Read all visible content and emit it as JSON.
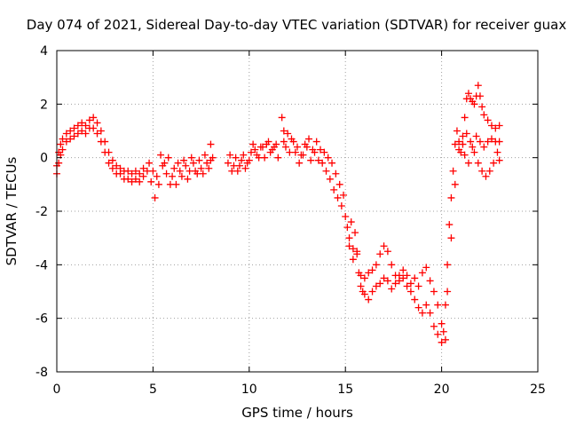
{
  "chart_data": {
    "type": "scatter",
    "title": "Day 074 of 2021, Sidereal Day-to-day VTEC variation (SDTVAR) for receiver guax",
    "xlabel": "GPS time / hours",
    "ylabel": "SDTVAR / TECUs",
    "xlim": [
      0,
      25
    ],
    "ylim": [
      -8,
      4
    ],
    "xticks": [
      0,
      5,
      10,
      15,
      20,
      25
    ],
    "yticks": [
      -8,
      -6,
      -4,
      -2,
      0,
      2,
      4
    ],
    "grid": true,
    "marker": "+",
    "series": [
      {
        "name": "SDTVAR",
        "color": "#ff0000",
        "points": [
          [
            0.0,
            -0.3
          ],
          [
            0.1,
            0.2
          ],
          [
            0.2,
            0.5
          ],
          [
            0.3,
            0.7
          ],
          [
            0.5,
            0.9
          ],
          [
            0.7,
            1.0
          ],
          [
            0.9,
            1.1
          ],
          [
            1.1,
            1.2
          ],
          [
            1.3,
            1.3
          ],
          [
            1.5,
            1.2
          ],
          [
            1.7,
            1.4
          ],
          [
            1.9,
            1.5
          ],
          [
            2.1,
            1.3
          ],
          [
            2.3,
            1.0
          ],
          [
            2.5,
            0.6
          ],
          [
            2.7,
            0.2
          ],
          [
            2.9,
            -0.1
          ],
          [
            3.1,
            -0.3
          ],
          [
            3.3,
            -0.4
          ],
          [
            3.5,
            -0.5
          ],
          [
            3.7,
            -0.5
          ],
          [
            3.9,
            -0.6
          ],
          [
            4.1,
            -0.5
          ],
          [
            4.3,
            -0.6
          ],
          [
            4.5,
            -0.4
          ],
          [
            0.0,
            -0.6
          ],
          [
            0.1,
            -0.2
          ],
          [
            0.2,
            0.1
          ],
          [
            0.3,
            0.3
          ],
          [
            0.5,
            0.6
          ],
          [
            0.7,
            0.7
          ],
          [
            0.9,
            0.8
          ],
          [
            1.1,
            0.9
          ],
          [
            1.3,
            1.0
          ],
          [
            1.5,
            0.9
          ],
          [
            1.7,
            1.1
          ],
          [
            1.9,
            1.1
          ],
          [
            2.1,
            0.9
          ],
          [
            2.3,
            0.6
          ],
          [
            2.5,
            0.2
          ],
          [
            2.7,
            -0.2
          ],
          [
            2.9,
            -0.4
          ],
          [
            3.1,
            -0.6
          ],
          [
            3.3,
            -0.6
          ],
          [
            3.5,
            -0.8
          ],
          [
            3.7,
            -0.8
          ],
          [
            3.9,
            -0.9
          ],
          [
            4.1,
            -0.8
          ],
          [
            4.3,
            -0.9
          ],
          [
            4.5,
            -0.7
          ],
          [
            4.7,
            -0.5
          ],
          [
            4.9,
            -0.9
          ],
          [
            5.1,
            -1.5
          ],
          [
            5.3,
            -1.0
          ],
          [
            5.5,
            -0.3
          ],
          [
            5.7,
            -0.6
          ],
          [
            5.9,
            -1.0
          ],
          [
            6.1,
            -0.4
          ],
          [
            6.3,
            -0.2
          ],
          [
            6.5,
            -0.7
          ],
          [
            6.7,
            -0.3
          ],
          [
            6.9,
            -0.5
          ],
          [
            7.1,
            -0.2
          ],
          [
            7.3,
            -0.6
          ],
          [
            7.5,
            -0.4
          ],
          [
            7.7,
            0.1
          ],
          [
            7.9,
            -0.4
          ],
          [
            8.0,
            0.5
          ],
          [
            8.1,
            0.0
          ],
          [
            4.8,
            -0.2
          ],
          [
            5.0,
            -0.5
          ],
          [
            5.2,
            -0.7
          ],
          [
            5.4,
            0.1
          ],
          [
            5.6,
            -0.2
          ],
          [
            5.8,
            0.0
          ],
          [
            6.0,
            -0.7
          ],
          [
            6.2,
            -1.0
          ],
          [
            6.4,
            -0.5
          ],
          [
            6.6,
            -0.1
          ],
          [
            6.8,
            -0.8
          ],
          [
            7.0,
            0.0
          ],
          [
            7.2,
            -0.5
          ],
          [
            7.4,
            -0.1
          ],
          [
            7.6,
            -0.6
          ],
          [
            7.8,
            -0.2
          ],
          [
            8.0,
            -0.1
          ],
          [
            8.9,
            -0.2
          ],
          [
            9.1,
            -0.5
          ],
          [
            9.3,
            0.0
          ],
          [
            9.5,
            -0.3
          ],
          [
            9.7,
            0.1
          ],
          [
            9.9,
            -0.2
          ],
          [
            10.1,
            0.2
          ],
          [
            10.3,
            0.3
          ],
          [
            10.5,
            0.0
          ],
          [
            10.7,
            0.4
          ],
          [
            10.9,
            0.5
          ],
          [
            11.1,
            0.2
          ],
          [
            11.3,
            0.4
          ],
          [
            11.5,
            0.0
          ],
          [
            9.0,
            0.1
          ],
          [
            9.2,
            -0.3
          ],
          [
            9.4,
            -0.5
          ],
          [
            9.6,
            -0.1
          ],
          [
            9.8,
            -0.4
          ],
          [
            10.0,
            -0.1
          ],
          [
            10.2,
            0.5
          ],
          [
            10.4,
            0.1
          ],
          [
            10.6,
            0.4
          ],
          [
            10.8,
            0.0
          ],
          [
            11.0,
            0.6
          ],
          [
            11.2,
            0.3
          ],
          [
            11.4,
            0.5
          ],
          [
            11.7,
            1.5
          ],
          [
            11.8,
            1.0
          ],
          [
            11.9,
            0.4
          ],
          [
            12.1,
            0.2
          ],
          [
            12.3,
            0.6
          ],
          [
            12.5,
            0.4
          ],
          [
            12.7,
            0.1
          ],
          [
            12.9,
            0.5
          ],
          [
            13.1,
            0.7
          ],
          [
            13.3,
            0.3
          ],
          [
            13.5,
            0.6
          ],
          [
            13.7,
            0.3
          ],
          [
            13.9,
            0.2
          ],
          [
            14.1,
            0.0
          ],
          [
            14.3,
            -0.2
          ],
          [
            14.5,
            -0.6
          ],
          [
            14.7,
            -1.0
          ],
          [
            14.9,
            -1.4
          ],
          [
            11.8,
            0.6
          ],
          [
            12.0,
            0.9
          ],
          [
            12.2,
            0.7
          ],
          [
            12.4,
            0.2
          ],
          [
            12.6,
            -0.2
          ],
          [
            12.8,
            0.1
          ],
          [
            13.0,
            0.4
          ],
          [
            13.2,
            -0.1
          ],
          [
            13.4,
            0.2
          ],
          [
            13.6,
            -0.1
          ],
          [
            13.8,
            -0.2
          ],
          [
            14.0,
            -0.5
          ],
          [
            14.2,
            -0.8
          ],
          [
            14.4,
            -1.2
          ],
          [
            14.6,
            -1.5
          ],
          [
            14.8,
            -1.8
          ],
          [
            15.0,
            -2.2
          ],
          [
            15.1,
            -2.6
          ],
          [
            15.2,
            -3.0
          ],
          [
            15.3,
            -2.4
          ],
          [
            15.4,
            -3.4
          ],
          [
            15.5,
            -2.8
          ],
          [
            15.6,
            -3.6
          ],
          [
            15.7,
            -4.3
          ],
          [
            15.8,
            -4.8
          ],
          [
            15.9,
            -5.0
          ],
          [
            16.0,
            -4.5
          ],
          [
            16.2,
            -4.3
          ],
          [
            16.4,
            -4.2
          ],
          [
            16.6,
            -4.0
          ],
          [
            16.8,
            -3.6
          ],
          [
            17.0,
            -3.3
          ],
          [
            17.2,
            -3.5
          ],
          [
            17.4,
            -4.0
          ],
          [
            17.6,
            -4.4
          ],
          [
            17.8,
            -4.6
          ],
          [
            18.0,
            -4.5
          ],
          [
            18.2,
            -4.8
          ],
          [
            18.4,
            -5.0
          ],
          [
            18.6,
            -5.3
          ],
          [
            18.8,
            -5.6
          ],
          [
            19.0,
            -5.8
          ],
          [
            19.2,
            -5.5
          ],
          [
            19.4,
            -5.8
          ],
          [
            19.6,
            -6.3
          ],
          [
            19.8,
            -6.6
          ],
          [
            20.0,
            -6.9
          ],
          [
            15.2,
            -3.3
          ],
          [
            15.4,
            -3.8
          ],
          [
            15.6,
            -3.5
          ],
          [
            15.8,
            -4.4
          ],
          [
            16.0,
            -5.1
          ],
          [
            16.2,
            -5.3
          ],
          [
            16.4,
            -5.0
          ],
          [
            16.6,
            -4.8
          ],
          [
            16.8,
            -4.7
          ],
          [
            17.0,
            -4.5
          ],
          [
            17.2,
            -4.6
          ],
          [
            17.4,
            -4.9
          ],
          [
            17.6,
            -4.7
          ],
          [
            17.8,
            -4.4
          ],
          [
            18.0,
            -4.2
          ],
          [
            18.2,
            -4.4
          ],
          [
            18.4,
            -4.7
          ],
          [
            18.6,
            -4.5
          ],
          [
            18.8,
            -4.8
          ],
          [
            19.0,
            -4.3
          ],
          [
            19.2,
            -4.1
          ],
          [
            19.4,
            -4.6
          ],
          [
            19.6,
            -5.0
          ],
          [
            19.8,
            -5.5
          ],
          [
            20.0,
            -6.2
          ],
          [
            20.1,
            -6.5
          ],
          [
            20.2,
            -5.5
          ],
          [
            20.3,
            -4.0
          ],
          [
            20.4,
            -2.5
          ],
          [
            20.5,
            -1.5
          ],
          [
            20.6,
            -0.5
          ],
          [
            20.7,
            0.5
          ],
          [
            20.8,
            1.0
          ],
          [
            20.9,
            0.6
          ],
          [
            21.0,
            0.2
          ],
          [
            21.1,
            0.8
          ],
          [
            21.2,
            1.5
          ],
          [
            21.3,
            2.2
          ],
          [
            21.4,
            2.4
          ],
          [
            21.5,
            2.2
          ],
          [
            21.6,
            2.1
          ],
          [
            21.7,
            2.0
          ],
          [
            21.8,
            2.3
          ],
          [
            21.9,
            2.7
          ],
          [
            22.0,
            2.3
          ],
          [
            22.1,
            1.9
          ],
          [
            22.2,
            1.6
          ],
          [
            22.4,
            1.4
          ],
          [
            22.6,
            1.2
          ],
          [
            22.8,
            1.1
          ],
          [
            23.0,
            1.2
          ],
          [
            20.2,
            -6.8
          ],
          [
            20.3,
            -5.0
          ],
          [
            20.5,
            -3.0
          ],
          [
            20.7,
            -1.0
          ],
          [
            20.9,
            0.3
          ],
          [
            21.1,
            0.5
          ],
          [
            21.3,
            0.9
          ],
          [
            21.5,
            0.6
          ],
          [
            21.7,
            0.2
          ],
          [
            21.9,
            -0.2
          ],
          [
            22.1,
            -0.5
          ],
          [
            22.3,
            -0.7
          ],
          [
            22.5,
            -0.5
          ],
          [
            22.7,
            -0.2
          ],
          [
            22.9,
            0.2
          ],
          [
            23.0,
            -0.1
          ],
          [
            21.2,
            0.1
          ],
          [
            21.4,
            -0.2
          ],
          [
            21.6,
            0.4
          ],
          [
            21.8,
            0.8
          ],
          [
            22.0,
            0.6
          ],
          [
            22.2,
            0.4
          ],
          [
            22.4,
            0.6
          ],
          [
            22.6,
            0.7
          ],
          [
            22.8,
            0.6
          ],
          [
            23.0,
            0.6
          ]
        ]
      }
    ]
  }
}
